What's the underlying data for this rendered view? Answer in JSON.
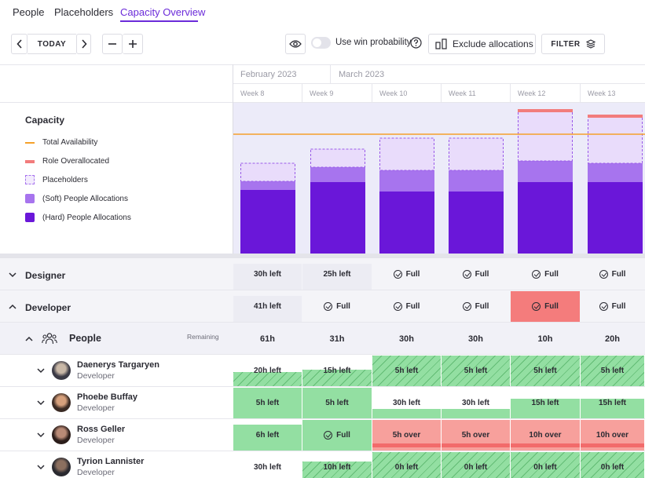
{
  "tabs": [
    {
      "label": "People"
    },
    {
      "label": "Placeholders"
    },
    {
      "label": "Capacity Overview"
    }
  ],
  "toolbar": {
    "today_label": "TODAY",
    "win_probability_label": "Use win probability",
    "exclude_label": "Exclude allocations",
    "filter_label": "FILTER"
  },
  "timeline": {
    "months": [
      "February 2023",
      "March 2023"
    ],
    "weeks": [
      "Week 8",
      "Week 9",
      "Week 10",
      "Week 11",
      "Week 12",
      "Week 13"
    ]
  },
  "legend": {
    "title": "Capacity",
    "items": [
      {
        "label": "Total Availability",
        "color": "#f5a02a"
      },
      {
        "label": "Role Overallocated",
        "color": "#f27c7c"
      },
      {
        "label": "Placeholders",
        "color": "#e9dcfb"
      },
      {
        "label": "(Soft) People Allocations",
        "color": "#a774ee"
      },
      {
        "label": "(Hard) People Allocations",
        "color": "#6a17d9"
      }
    ]
  },
  "chart_data": {
    "type": "bar",
    "categories": [
      "Week 8",
      "Week 9",
      "Week 10",
      "Week 11",
      "Week 12",
      "Week 13"
    ],
    "series": [
      {
        "name": "(Hard) People Allocations",
        "values": [
          81,
          91,
          79,
          79,
          91,
          91
        ]
      },
      {
        "name": "(Soft) People Allocations",
        "values": [
          11,
          19,
          27,
          27,
          27,
          24
        ]
      },
      {
        "name": "Placeholders",
        "values": [
          23,
          23,
          41,
          41,
          63,
          59
        ]
      },
      {
        "name": "Role Overallocated",
        "values": [
          0,
          0,
          0,
          0,
          1,
          1
        ]
      }
    ],
    "total_availability": 152,
    "colors": {
      "hard": "#6a17d9",
      "soft": "#a774ee",
      "placeholder": "#e9dcfb",
      "over": "#f27c7c",
      "availability": "#f5a02a"
    }
  },
  "groups": [
    {
      "label": "Designer",
      "cells": [
        "30h left",
        "25h left",
        "Full",
        "Full",
        "Full",
        "Full"
      ]
    },
    {
      "label": "Developer",
      "cells": [
        "41h left",
        "Full",
        "Full",
        "Full",
        "Full",
        "Full"
      ]
    }
  ],
  "people_group": {
    "label": "People",
    "remaining_label": "Remaining",
    "cells": [
      "61h",
      "31h",
      "30h",
      "30h",
      "10h",
      "20h"
    ]
  },
  "people": [
    {
      "name": "Daenerys Targaryen",
      "role": "Developer",
      "cells": [
        "20h left",
        "15h left",
        "5h left",
        "5h left",
        "5h left",
        "5h left"
      ]
    },
    {
      "name": "Phoebe Buffay",
      "role": "Developer",
      "cells": [
        "5h left",
        "5h left",
        "30h left",
        "30h left",
        "15h left",
        "15h left"
      ]
    },
    {
      "name": "Ross Geller",
      "role": "Developer",
      "cells": [
        "6h left",
        "Full",
        "5h over",
        "5h over",
        "10h over",
        "10h over"
      ]
    },
    {
      "name": "Tyrion Lannister",
      "role": "Developer",
      "cells": [
        "30h left",
        "10h left",
        "0h left",
        "0h left",
        "0h left",
        "0h left"
      ]
    }
  ]
}
